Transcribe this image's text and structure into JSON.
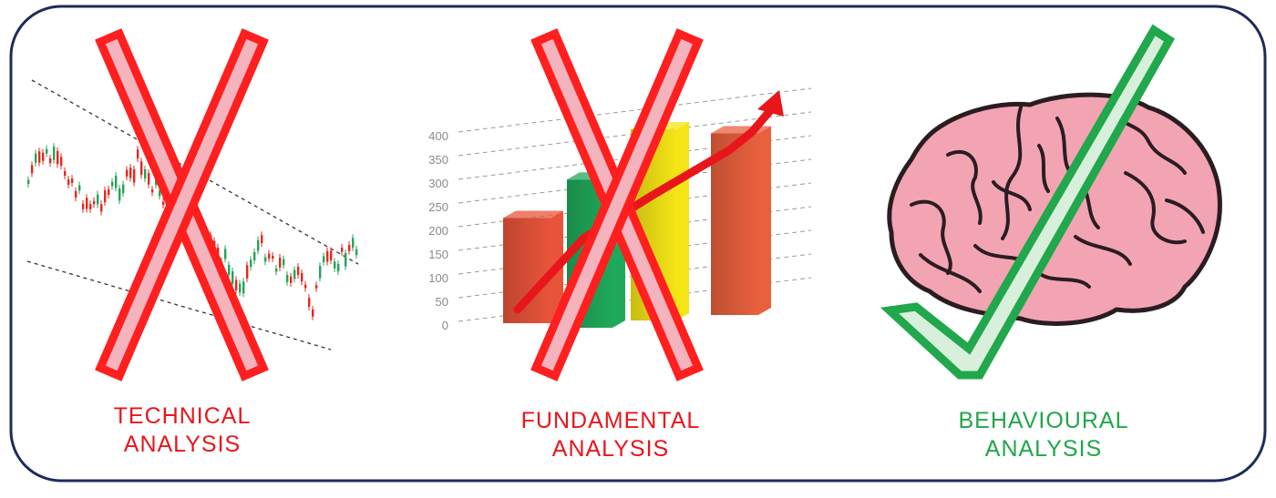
{
  "colors": {
    "frame": "#1d2b5a",
    "cross_red": "#ff1f1f",
    "cross_fill": "#f4b3bd",
    "check_green": "#21a74c",
    "check_fill": "#d8efdc",
    "brain_fill": "#f3a4b2",
    "brain_line": "#2a1d22",
    "candle_up": "#23a35a",
    "candle_down": "#e5271d"
  },
  "icons": {
    "technical": "candlestick-chart-icon",
    "fundamental": "bar-chart-icon",
    "behavioural": "brain-icon",
    "rejected_mark": "cross-mark-icon",
    "approved_mark": "check-mark-icon"
  },
  "panels": [
    {
      "line1": "TECHNICAL",
      "line2": "ANALYSIS",
      "color": "#e8161b",
      "verdict": "rejected"
    },
    {
      "line1": "FUNDAMENTAL",
      "line2": "ANALYSIS",
      "color": "#e8161b",
      "verdict": "rejected"
    },
    {
      "line1": "BEHAVIOURAL",
      "line2": "ANALYSIS",
      "color": "#22a64a",
      "verdict": "approved"
    }
  ],
  "bar_chart": {
    "y_ticks": [
      "400",
      "350",
      "300",
      "250",
      "200",
      "150",
      "100",
      "50",
      "0"
    ],
    "bar_values": [
      220,
      310,
      400,
      380
    ],
    "bar_colors": [
      "#e8543a",
      "#20a95a",
      "#f5e516",
      "#e8603d"
    ]
  }
}
